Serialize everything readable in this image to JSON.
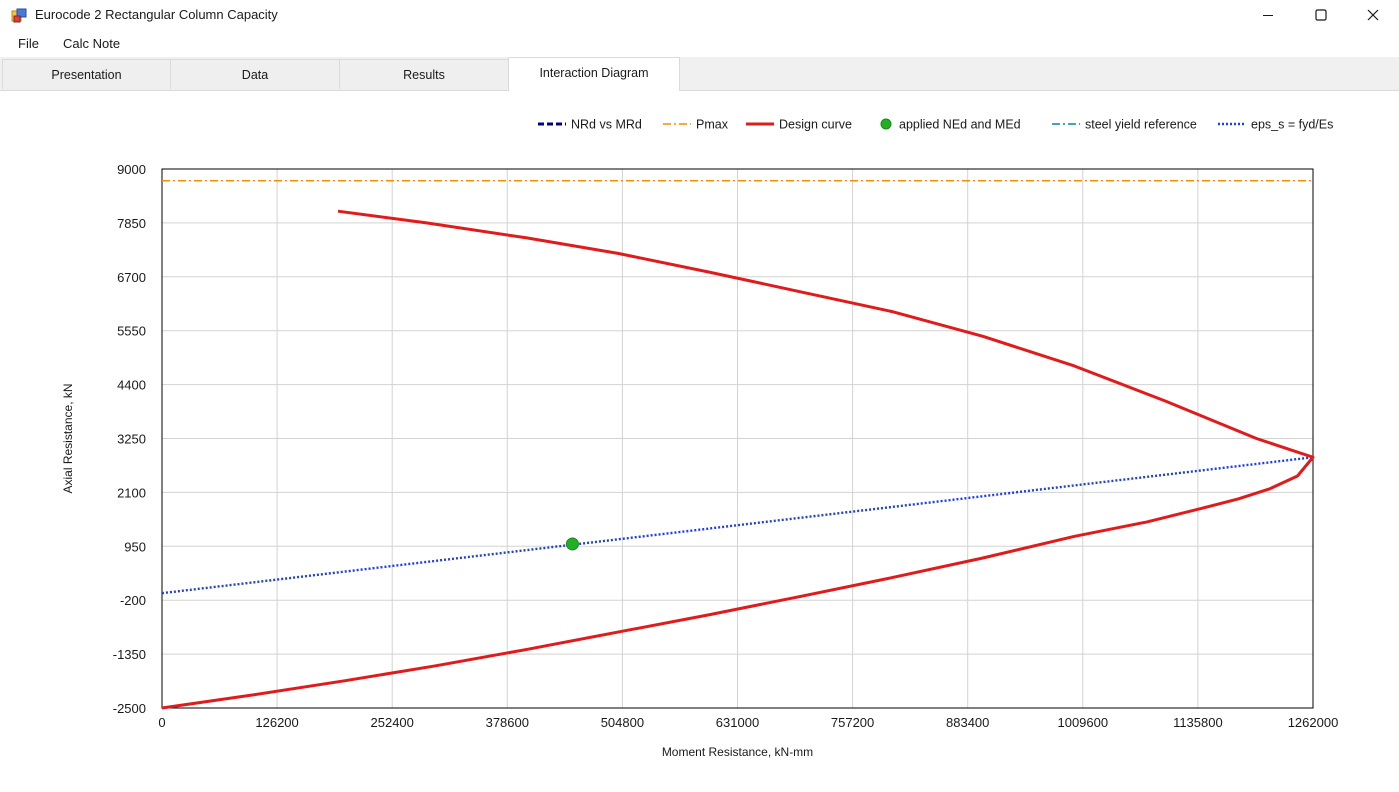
{
  "window": {
    "title": "Eurocode 2 Rectangular Column Capacity",
    "minimize_icon": "minimize-icon",
    "maximize_icon": "maximize-icon",
    "close_icon": "close-icon"
  },
  "menu": {
    "items": [
      {
        "label": "File"
      },
      {
        "label": "Calc Note"
      }
    ]
  },
  "tabs": [
    {
      "label": "Presentation",
      "active": false
    },
    {
      "label": "Data",
      "active": false
    },
    {
      "label": "Results",
      "active": false
    },
    {
      "label": "Interaction Diagram",
      "active": true
    }
  ],
  "colors": {
    "nrd_vs_mrd": "#00008b",
    "pmax": "#ff8c00",
    "design_curve": "#e01b1b",
    "applied_point": "#22b022",
    "steel_yield": "#008b8b",
    "eps_s": "#1f3fe0",
    "grid": "#d3d3d3"
  },
  "chart_data": {
    "type": "line",
    "xlabel": "Moment Resistance, kN-mm",
    "ylabel": "Axial Resistance, kN",
    "xlim": [
      0,
      1262000
    ],
    "ylim": [
      -2500,
      9000
    ],
    "x_ticks": [
      "0",
      "126200",
      "252400",
      "378600",
      "504800",
      "631000",
      "757200",
      "883400",
      "1009600",
      "1135800",
      "1262000"
    ],
    "y_ticks": [
      "9000",
      "7850",
      "6700",
      "5550",
      "4400",
      "3250",
      "2100",
      "950",
      "-200",
      "-1350",
      "-2500"
    ],
    "grid": true,
    "legend_position": "top-right",
    "legend": [
      {
        "name": "NRd vs MRd",
        "style": "dashed",
        "color": "#00008b"
      },
      {
        "name": "Pmax",
        "style": "dashdot",
        "color": "#ff8c00"
      },
      {
        "name": "Design curve",
        "style": "solid",
        "color": "#e01b1b"
      },
      {
        "name": "applied NEd and MEd",
        "style": "marker",
        "color": "#22b022"
      },
      {
        "name": "steel yield reference",
        "style": "dashdot",
        "color": "#008b8b"
      },
      {
        "name": "eps_s = fyd/Es",
        "style": "dotted",
        "color": "#1f3fe0"
      }
    ],
    "series": [
      {
        "name": "Pmax",
        "x": [
          0,
          1262000
        ],
        "y": [
          8750,
          8750
        ]
      },
      {
        "name": "Design curve",
        "x": [
          193000,
          290000,
          400000,
          500000,
          600000,
          700000,
          800000,
          900000,
          1000000,
          1100000,
          1200000,
          1262000,
          1245000,
          1215000,
          1180000,
          1140000,
          1080000,
          1000000,
          900000,
          800000,
          700000,
          600000,
          500000,
          400000,
          300000,
          200000,
          100000,
          0
        ],
        "y": [
          8100,
          7850,
          7530,
          7200,
          6800,
          6380,
          5960,
          5430,
          4800,
          4050,
          3250,
          2850,
          2450,
          2180,
          1960,
          1760,
          1470,
          1160,
          700,
          280,
          -120,
          -510,
          -880,
          -1250,
          -1600,
          -1920,
          -2220,
          -2500
        ]
      },
      {
        "name": "eps_s = fyd/Es",
        "x": [
          0,
          1262000
        ],
        "y": [
          -50,
          2850
        ]
      },
      {
        "name": "applied NEd and MEd",
        "x": [
          450000
        ],
        "y": [
          1000
        ]
      }
    ]
  }
}
